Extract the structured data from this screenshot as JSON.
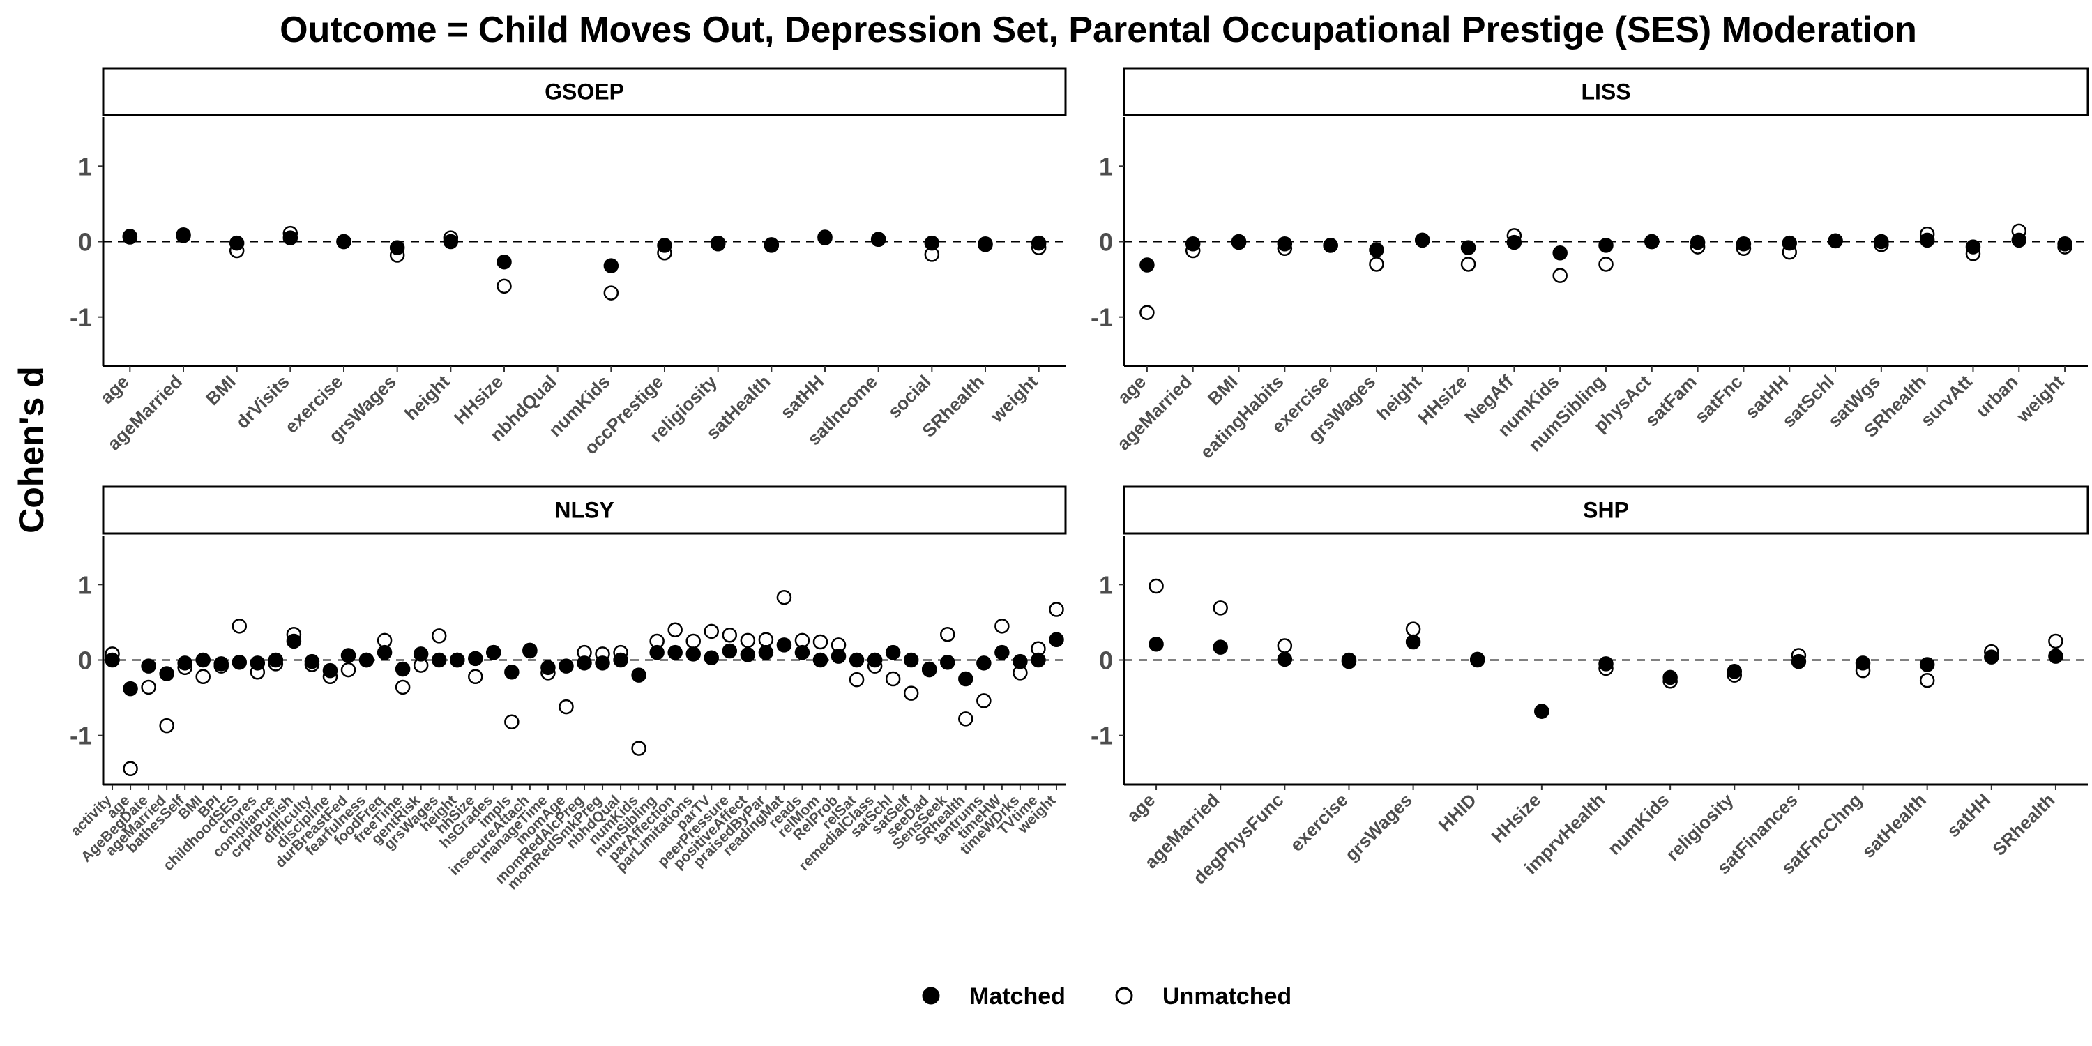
{
  "chart_data": {
    "type": "scatter",
    "title": "Outcome = Child Moves Out, Depression Set, Parental Occupational Prestige (SES) Moderation",
    "ylabel": "Cohen's d",
    "xlabel": "",
    "ylim": [
      -1.65,
      1.65
    ],
    "yticks": [
      -1,
      0,
      1
    ],
    "reference_line": 0,
    "grid": false,
    "legend": {
      "placement": "bottom",
      "entries": [
        {
          "name": "Matched",
          "marker": "filled-circle"
        },
        {
          "name": "Unmatched",
          "marker": "open-circle"
        }
      ]
    },
    "colors": {
      "matched_fill": "#000000",
      "unmatched_fill": "#ffffff",
      "stroke": "#000000",
      "reference_line": "#000000"
    },
    "panels": [
      {
        "name": "GSOEP",
        "categories": [
          "age",
          "ageMarried",
          "BMI",
          "drVisits",
          "exercise",
          "grsWages",
          "height",
          "HHsize",
          "nbhdQual",
          "numKids",
          "occPrestige",
          "religiosity",
          "satHealth",
          "satHH",
          "satIncome",
          "social",
          "SRhealth",
          "weight"
        ],
        "series": [
          {
            "name": "Matched",
            "values": [
              0.07,
              0.09,
              -0.02,
              0.05,
              0.0,
              -0.08,
              0.0,
              -0.27,
              null,
              -0.32,
              -0.05,
              -0.02,
              -0.04,
              0.06,
              0.03,
              -0.02,
              -0.03,
              -0.02
            ]
          },
          {
            "name": "Unmatched",
            "values": [
              0.06,
              0.08,
              -0.12,
              0.11,
              0.0,
              -0.18,
              0.05,
              -0.59,
              null,
              -0.68,
              -0.15,
              -0.03,
              -0.05,
              0.05,
              0.03,
              -0.17,
              -0.04,
              -0.08
            ]
          }
        ]
      },
      {
        "name": "LISS",
        "categories": [
          "age",
          "ageMarried",
          "BMI",
          "eatingHabits",
          "exercise",
          "grsWages",
          "height",
          "HHsize",
          "NegAff",
          "numKids",
          "numSibling",
          "physAct",
          "satFam",
          "satFnc",
          "satHH",
          "satSchl",
          "satWgs",
          "SRhealth",
          "survAtt",
          "urban",
          "weight"
        ],
        "series": [
          {
            "name": "Matched",
            "values": [
              -0.31,
              -0.03,
              0.0,
              -0.03,
              -0.05,
              -0.11,
              0.02,
              -0.08,
              -0.01,
              -0.15,
              -0.05,
              0.0,
              -0.01,
              -0.03,
              -0.02,
              0.01,
              0.0,
              0.02,
              -0.07,
              0.02,
              -0.03
            ]
          },
          {
            "name": "Unmatched",
            "values": [
              -0.94,
              -0.12,
              -0.01,
              -0.09,
              -0.05,
              -0.3,
              0.02,
              -0.3,
              0.08,
              -0.45,
              -0.3,
              0.0,
              -0.07,
              -0.09,
              -0.14,
              0.01,
              -0.04,
              0.1,
              -0.16,
              0.14,
              -0.07
            ]
          }
        ]
      },
      {
        "name": "NLSY",
        "categories": [
          "activity",
          "age",
          "AgeBegDate",
          "ageMarried",
          "bathesSelf",
          "BMI",
          "BPI",
          "childhoodSES",
          "chores",
          "compliance",
          "crprlPunish",
          "difficulty",
          "discipline",
          "durBreastFed",
          "fearfulness",
          "foodFreq",
          "freeTime",
          "gentRisk",
          "grsWages",
          "height",
          "hhSize",
          "hsGrades",
          "impls",
          "insecureAttach",
          "manageTime",
          "momAge",
          "momRedAlcPreg",
          "momRedSmkPreg",
          "nbhdQual",
          "numKids",
          "numSibling",
          "parAffection",
          "parLimitations",
          "parTV",
          "peerPressure",
          "positiveAffect",
          "praisedByPar",
          "readingMat",
          "reads",
          "relMom",
          "RelProb",
          "relSat",
          "remedialClass",
          "satSchl",
          "satSelf",
          "seeDad",
          "SensSeek",
          "SRhealth",
          "tantrums",
          "timeHW",
          "timeWDrks",
          "TVtime",
          "weight"
        ],
        "series": [
          {
            "name": "Matched",
            "values": [
              0.0,
              -0.38,
              -0.08,
              -0.18,
              -0.04,
              0.0,
              -0.05,
              -0.03,
              -0.04,
              0.0,
              0.25,
              -0.02,
              -0.14,
              0.06,
              0.0,
              0.1,
              -0.12,
              0.08,
              0.0,
              0.0,
              0.02,
              0.1,
              -0.16,
              0.13,
              -0.1,
              -0.08,
              -0.04,
              -0.04,
              0.0,
              -0.2,
              0.1,
              0.1,
              0.08,
              0.03,
              0.12,
              0.07,
              0.1,
              0.2,
              0.1,
              0.0,
              0.05,
              0.0,
              0.0,
              0.1,
              0.0,
              -0.12,
              -0.03,
              -0.25,
              -0.04,
              0.1,
              -0.02,
              0.0,
              0.27
            ]
          },
          {
            "name": "Unmatched",
            "values": [
              0.08,
              -1.44,
              -0.36,
              -0.87,
              -0.1,
              -0.22,
              -0.08,
              0.45,
              -0.16,
              -0.05,
              0.34,
              -0.06,
              -0.22,
              -0.13,
              0.0,
              0.26,
              -0.36,
              -0.07,
              0.32,
              0.0,
              -0.22,
              0.1,
              -0.82,
              0.12,
              -0.17,
              -0.62,
              0.1,
              0.08,
              0.1,
              -1.17,
              0.25,
              0.4,
              0.25,
              0.38,
              0.33,
              0.26,
              0.27,
              0.83,
              0.26,
              0.24,
              0.2,
              -0.26,
              -0.08,
              -0.25,
              -0.44,
              -0.13,
              0.34,
              -0.78,
              -0.54,
              0.45,
              -0.17,
              0.15,
              0.67
            ]
          }
        ]
      },
      {
        "name": "SHP",
        "categories": [
          "age",
          "ageMarried",
          "degPhysFunc",
          "exercise",
          "grsWages",
          "HHID",
          "HHsize",
          "imprvHealth",
          "numKids",
          "religiosity",
          "satFinances",
          "satFncChng",
          "satHealth",
          "satHH",
          "SRhealth"
        ],
        "series": [
          {
            "name": "Matched",
            "values": [
              0.21,
              0.17,
              0.01,
              -0.02,
              0.24,
              0.01,
              -0.68,
              -0.05,
              -0.23,
              -0.15,
              -0.02,
              -0.04,
              -0.06,
              0.04,
              0.05
            ]
          },
          {
            "name": "Unmatched",
            "values": [
              0.98,
              0.69,
              0.19,
              0.0,
              0.41,
              0.0,
              -0.68,
              -0.11,
              -0.28,
              -0.2,
              0.06,
              -0.14,
              -0.27,
              0.11,
              0.25
            ]
          }
        ]
      }
    ]
  }
}
